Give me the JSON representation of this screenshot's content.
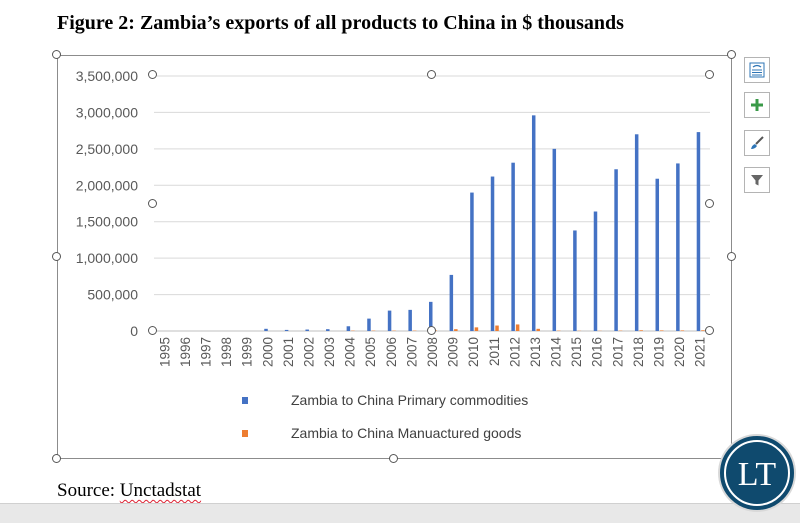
{
  "title": "Figure 2: Zambia’s exports of all products to China in $ thousands",
  "source": {
    "prefix": "Source: ",
    "name": "Unctadstat"
  },
  "logo": {
    "text": "LT",
    "bg": "#0f4a6e",
    "ring": "#ffffff"
  },
  "side_buttons": [
    {
      "name": "layout-options-icon"
    },
    {
      "name": "plus-icon"
    },
    {
      "name": "brush-icon"
    },
    {
      "name": "filter-icon"
    }
  ],
  "chart_data": {
    "type": "bar",
    "categories": [
      "1995",
      "1996",
      "1997",
      "1998",
      "1999",
      "2000",
      "2001",
      "2002",
      "2003",
      "2004",
      "2005",
      "2006",
      "2007",
      "2008",
      "2009",
      "2010",
      "2011",
      "2012",
      "2013",
      "2014",
      "2015",
      "2016",
      "2017",
      "2018",
      "2019",
      "2020",
      "2021"
    ],
    "series": [
      {
        "name": "Zambia to China Primary commodities",
        "color": "#4472c4",
        "values": [
          0,
          0,
          0,
          0,
          0,
          30000,
          15000,
          20000,
          25000,
          65000,
          170000,
          280000,
          290000,
          400000,
          770000,
          1900000,
          2120000,
          2310000,
          2960000,
          2500000,
          1380000,
          1640000,
          2220000,
          2700000,
          2090000,
          2300000,
          2730000
        ]
      },
      {
        "name": "Zambia to China Manuactured goods",
        "color": "#ed7d31",
        "values": [
          0,
          0,
          0,
          0,
          0,
          0,
          0,
          0,
          0,
          5000,
          5000,
          5000,
          5000,
          8000,
          25000,
          50000,
          75000,
          90000,
          30000,
          5000,
          3000,
          3000,
          5000,
          10000,
          8000,
          8000,
          10000
        ]
      }
    ],
    "ylim": [
      0,
      3500000
    ],
    "yticks": [
      0,
      500000,
      1000000,
      1500000,
      2000000,
      2500000,
      3000000,
      3500000
    ],
    "ytick_labels": [
      "0",
      "500,000",
      "1,000,000",
      "1,500,000",
      "2,000,000",
      "2,500,000",
      "3,000,000",
      "3,500,000"
    ],
    "grid": true,
    "legend_position": "bottom"
  }
}
